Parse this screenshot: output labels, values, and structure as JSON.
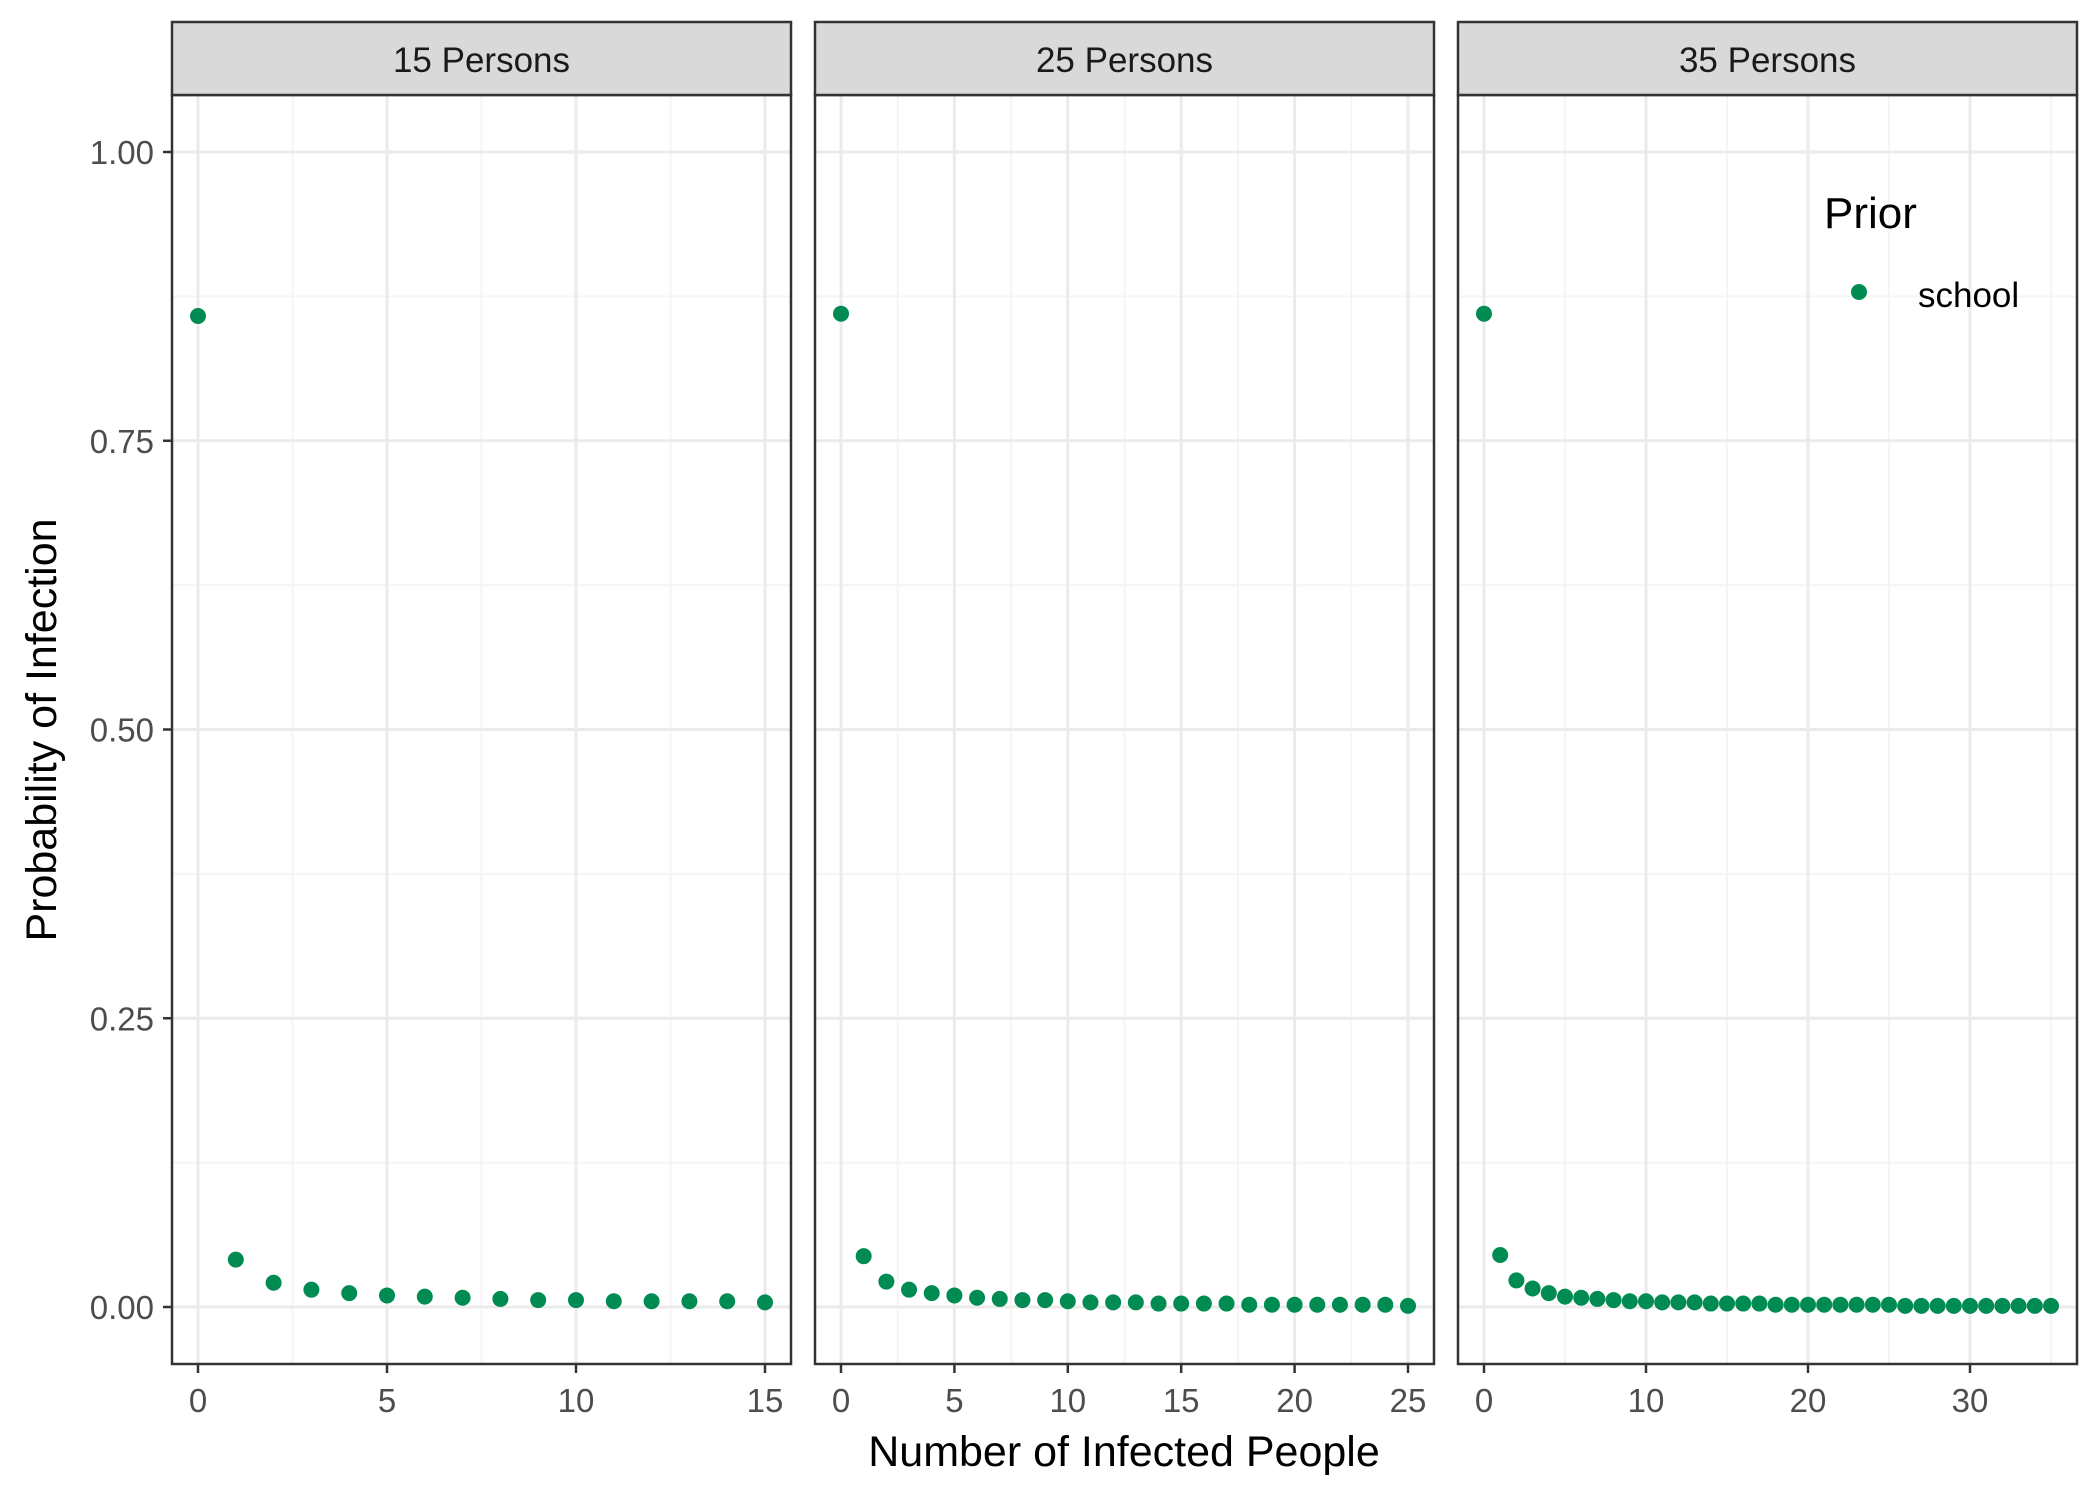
{
  "colors": {
    "point": "#008B52",
    "strip_fill": "#D9D9D9",
    "panel_border": "#333333",
    "grid_major": "#EBEBEB",
    "grid_minor": "#F5F5F5"
  },
  "chart_data": {
    "type": "scatter",
    "facet_strips": [
      "15 Persons",
      "25 Persons",
      "35 Persons"
    ],
    "xlabel": "Number of Infected People",
    "ylabel": "Probability of Infection",
    "ylim": [
      0,
      1
    ],
    "y_ticks": [
      "0.00",
      "0.25",
      "0.50",
      "0.75",
      "1.00"
    ],
    "y_tick_values": [
      0,
      0.25,
      0.5,
      0.75,
      1.0
    ],
    "legend": {
      "title": "Prior",
      "entries": [
        "school"
      ],
      "position": "top-right inside last panel"
    },
    "grid": true,
    "panels": [
      {
        "strip": "15 Persons",
        "xlim": [
          0,
          15
        ],
        "x_ticks": [
          0,
          5,
          10,
          15
        ],
        "x_tick_labels": [
          "0",
          "5",
          "10",
          "15"
        ],
        "series": [
          {
            "name": "school",
            "x": [
              0,
              1,
              2,
              3,
              4,
              5,
              6,
              7,
              8,
              9,
              10,
              11,
              12,
              13,
              14,
              15
            ],
            "y": [
              0.858,
              0.041,
              0.021,
              0.015,
              0.012,
              0.01,
              0.009,
              0.008,
              0.007,
              0.006,
              0.006,
              0.005,
              0.005,
              0.005,
              0.005,
              0.004
            ]
          }
        ]
      },
      {
        "strip": "25 Persons",
        "xlim": [
          0,
          25
        ],
        "x_ticks": [
          0,
          5,
          10,
          15,
          20,
          25
        ],
        "x_tick_labels": [
          "0",
          "5",
          "10",
          "15",
          "20",
          "25"
        ],
        "series": [
          {
            "name": "school",
            "x": [
              0,
              1,
              2,
              3,
              4,
              5,
              6,
              7,
              8,
              9,
              10,
              11,
              12,
              13,
              14,
              15,
              16,
              17,
              18,
              19,
              20,
              21,
              22,
              23,
              24,
              25
            ],
            "y": [
              0.86,
              0.044,
              0.022,
              0.015,
              0.012,
              0.01,
              0.008,
              0.007,
              0.006,
              0.006,
              0.005,
              0.004,
              0.004,
              0.004,
              0.003,
              0.003,
              0.003,
              0.003,
              0.002,
              0.002,
              0.002,
              0.002,
              0.002,
              0.002,
              0.002,
              0.001
            ]
          }
        ]
      },
      {
        "strip": "35 Persons",
        "xlim": [
          0,
          35
        ],
        "x_ticks": [
          0,
          10,
          20,
          30
        ],
        "x_tick_labels": [
          "0",
          "10",
          "20",
          "30"
        ],
        "series": [
          {
            "name": "school",
            "x": [
              0,
              1,
              2,
              3,
              4,
              5,
              6,
              7,
              8,
              9,
              10,
              11,
              12,
              13,
              14,
              15,
              16,
              17,
              18,
              19,
              20,
              21,
              22,
              23,
              24,
              25,
              26,
              27,
              28,
              29,
              30,
              31,
              32,
              33,
              34,
              35
            ],
            "y": [
              0.86,
              0.045,
              0.023,
              0.016,
              0.012,
              0.009,
              0.008,
              0.007,
              0.006,
              0.005,
              0.005,
              0.004,
              0.004,
              0.004,
              0.003,
              0.003,
              0.003,
              0.003,
              0.002,
              0.002,
              0.002,
              0.002,
              0.002,
              0.002,
              0.002,
              0.002,
              0.001,
              0.001,
              0.001,
              0.001,
              0.001,
              0.001,
              0.001,
              0.001,
              0.001,
              0.001
            ]
          }
        ]
      }
    ]
  }
}
